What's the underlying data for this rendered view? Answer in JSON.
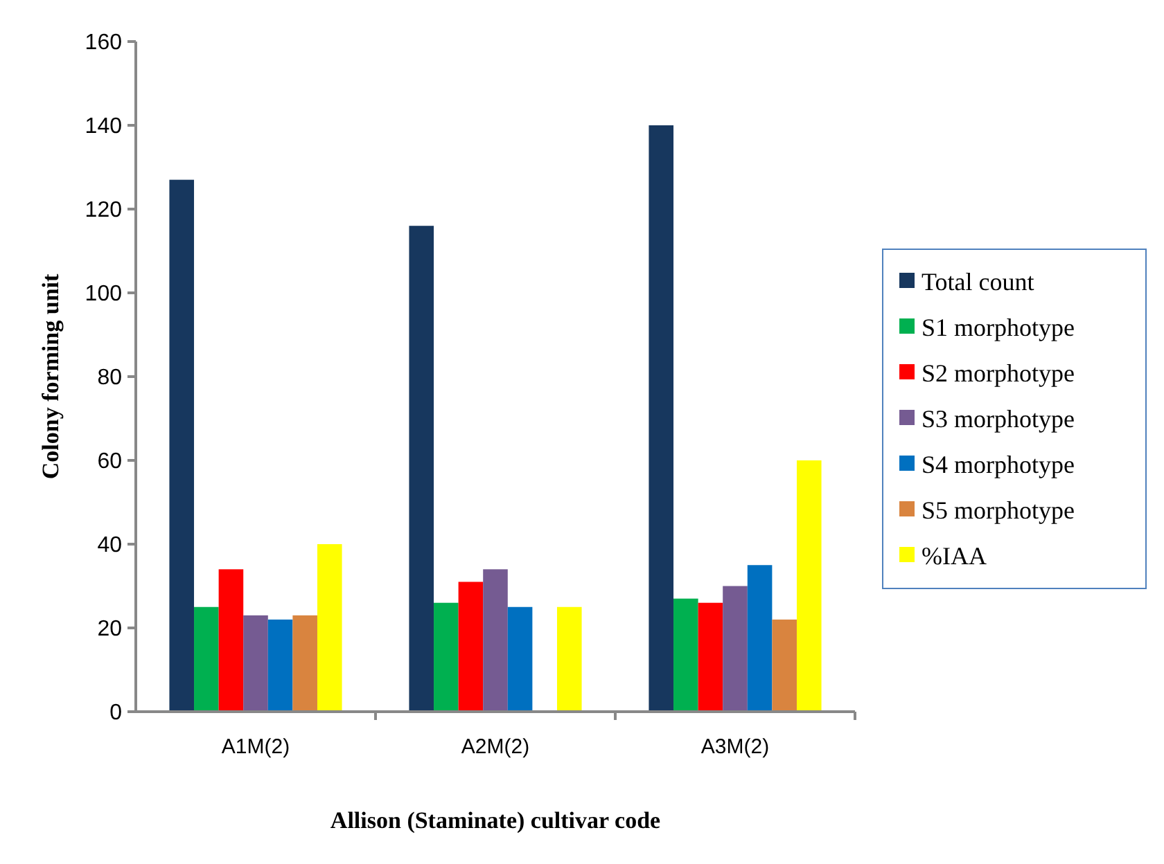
{
  "chart_data": {
    "type": "bar",
    "xlabel": "Allison (Staminate) cultivar code",
    "ylabel": "Colony forming unit",
    "categories": [
      "A1M(2)",
      "A2M(2)",
      "A3M(2)"
    ],
    "series": [
      {
        "name": "Total count",
        "color": "#17375e",
        "values": [
          127,
          116,
          140
        ]
      },
      {
        "name": "S1 morphotype",
        "color": "#00b050",
        "values": [
          25,
          26,
          27
        ]
      },
      {
        "name": "S2 morphotype",
        "color": "#ff0000",
        "values": [
          34,
          31,
          26
        ]
      },
      {
        "name": "S3 morphotype",
        "color": "#755b92",
        "values": [
          23,
          34,
          30
        ]
      },
      {
        "name": "S4 morphotype",
        "color": "#0070c0",
        "values": [
          22,
          25,
          35
        ]
      },
      {
        "name": "S5 morphotype",
        "color": "#d9843f",
        "values": [
          23,
          null,
          22
        ]
      },
      {
        "name": "%IAA",
        "color": "#ffff00",
        "values": [
          40,
          25,
          60
        ]
      }
    ],
    "ylim": [
      0,
      160
    ],
    "yticks": [
      0,
      20,
      40,
      60,
      80,
      100,
      120,
      140,
      160
    ],
    "grid": false,
    "legend": "right"
  }
}
